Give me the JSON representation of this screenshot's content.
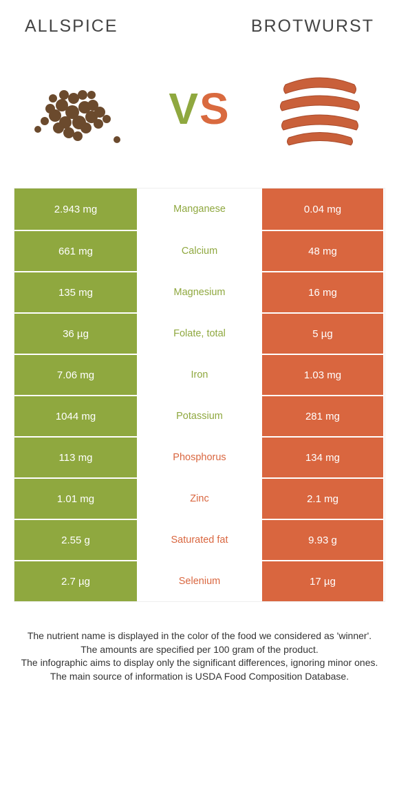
{
  "colors": {
    "left": "#8fa83f",
    "right": "#d9663f",
    "text": "#333333",
    "title": "#444444",
    "bg": "#ffffff"
  },
  "header": {
    "left_title": "Allspice",
    "right_title": "Brotwurst",
    "vs_v": "V",
    "vs_s": "S"
  },
  "table": {
    "rows": [
      {
        "left": "2.943 mg",
        "label": "Manganese",
        "right": "0.04 mg",
        "winner": "left"
      },
      {
        "left": "661 mg",
        "label": "Calcium",
        "right": "48 mg",
        "winner": "left"
      },
      {
        "left": "135 mg",
        "label": "Magnesium",
        "right": "16 mg",
        "winner": "left"
      },
      {
        "left": "36 µg",
        "label": "Folate, total",
        "right": "5 µg",
        "winner": "left"
      },
      {
        "left": "7.06 mg",
        "label": "Iron",
        "right": "1.03 mg",
        "winner": "left"
      },
      {
        "left": "1044 mg",
        "label": "Potassium",
        "right": "281 mg",
        "winner": "left"
      },
      {
        "left": "113 mg",
        "label": "Phosphorus",
        "right": "134 mg",
        "winner": "right"
      },
      {
        "left": "1.01 mg",
        "label": "Zinc",
        "right": "2.1 mg",
        "winner": "right"
      },
      {
        "left": "2.55 g",
        "label": "Saturated fat",
        "right": "9.93 g",
        "winner": "right"
      },
      {
        "left": "2.7 µg",
        "label": "Selenium",
        "right": "17 µg",
        "winner": "right"
      }
    ]
  },
  "footer": {
    "line1": "The nutrient name is displayed in the color of the food we considered as 'winner'.",
    "line2": "The amounts are specified per 100 gram of the product.",
    "line3": "The infographic aims to display only the significant differences, ignoring minor ones.",
    "line4": "The main source of information is USDA Food Composition Database."
  }
}
